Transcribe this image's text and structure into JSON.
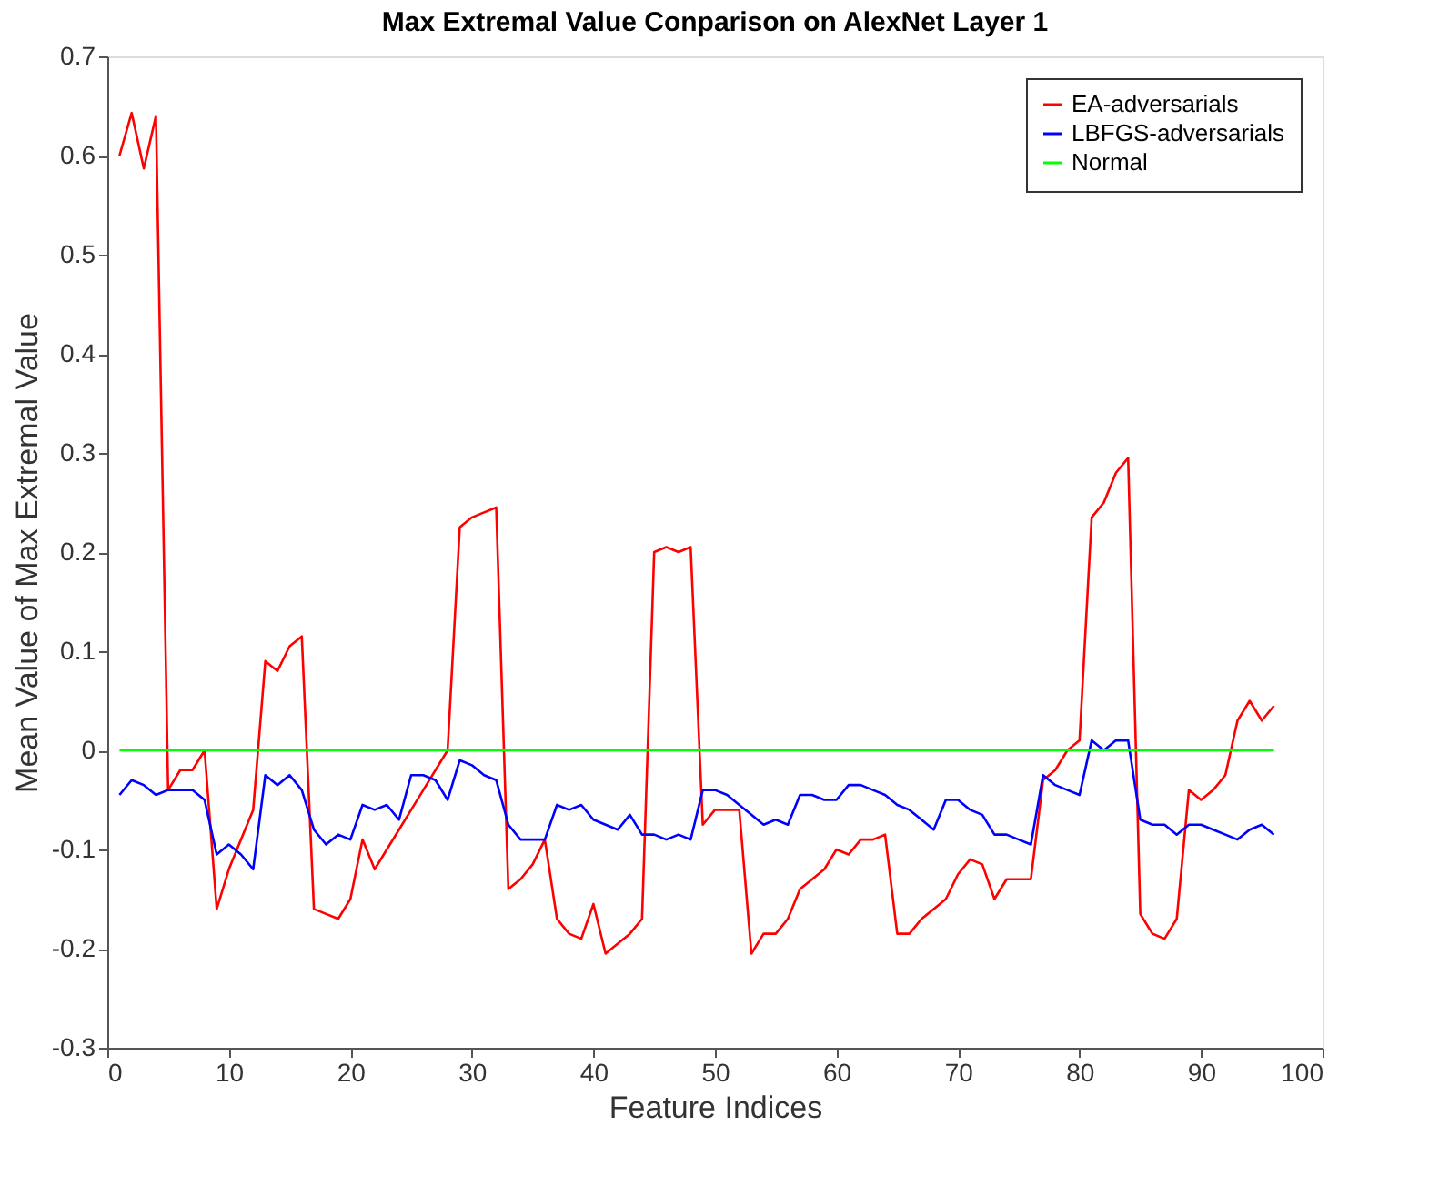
{
  "chart_data": {
    "type": "line",
    "title": "Max Extremal Value Conparison on AlexNet Layer 1",
    "xlabel": "Feature Indices",
    "ylabel": "Mean Value of Max Extremal Value",
    "x": [
      1,
      2,
      3,
      4,
      5,
      6,
      7,
      8,
      9,
      10,
      11,
      12,
      13,
      14,
      15,
      16,
      17,
      18,
      19,
      20,
      21,
      22,
      23,
      24,
      25,
      26,
      27,
      28,
      29,
      30,
      31,
      32,
      33,
      34,
      35,
      36,
      37,
      38,
      39,
      40,
      41,
      42,
      43,
      44,
      45,
      46,
      47,
      48,
      49,
      50,
      51,
      52,
      53,
      54,
      55,
      56,
      57,
      58,
      59,
      60,
      61,
      62,
      63,
      64,
      65,
      66,
      67,
      68,
      69,
      70,
      71,
      72,
      73,
      74,
      75,
      76,
      77,
      78,
      79,
      80,
      81,
      82,
      83,
      84,
      85,
      86,
      87,
      88,
      89,
      90,
      91,
      92,
      93,
      94,
      95,
      96
    ],
    "series": [
      {
        "name": "EA-adversarials",
        "color": "#ff0000",
        "values": [
          0.6,
          0.643,
          0.587,
          0.64,
          -0.04,
          -0.02,
          -0.02,
          0.0,
          -0.16,
          -0.12,
          -0.09,
          -0.06,
          0.09,
          0.08,
          0.105,
          0.115,
          -0.16,
          -0.165,
          -0.17,
          -0.15,
          -0.09,
          -0.12,
          -0.1,
          -0.08,
          -0.06,
          -0.04,
          -0.02,
          0.0,
          0.225,
          0.235,
          0.24,
          0.245,
          -0.14,
          -0.13,
          -0.115,
          -0.09,
          -0.17,
          -0.185,
          -0.19,
          -0.155,
          -0.205,
          -0.195,
          -0.185,
          -0.17,
          0.2,
          0.205,
          0.2,
          0.205,
          -0.075,
          -0.06,
          -0.06,
          -0.06,
          -0.205,
          -0.185,
          -0.185,
          -0.17,
          -0.14,
          -0.13,
          -0.12,
          -0.1,
          -0.105,
          -0.09,
          -0.09,
          -0.085,
          -0.185,
          -0.185,
          -0.17,
          -0.16,
          -0.15,
          -0.125,
          -0.11,
          -0.115,
          -0.15,
          -0.13,
          -0.13,
          -0.13,
          -0.03,
          -0.02,
          0.0,
          0.01,
          0.235,
          0.25,
          0.28,
          0.295,
          -0.165,
          -0.185,
          -0.19,
          -0.17,
          -0.04,
          -0.05,
          -0.04,
          -0.025,
          0.03,
          0.05,
          0.03,
          0.045
        ]
      },
      {
        "name": "LBFGS-adversarials",
        "color": "#0000ff",
        "values": [
          -0.045,
          -0.03,
          -0.035,
          -0.045,
          -0.04,
          -0.04,
          -0.04,
          -0.05,
          -0.105,
          -0.095,
          -0.105,
          -0.12,
          -0.025,
          -0.035,
          -0.025,
          -0.04,
          -0.08,
          -0.095,
          -0.085,
          -0.09,
          -0.055,
          -0.06,
          -0.055,
          -0.07,
          -0.025,
          -0.025,
          -0.03,
          -0.05,
          -0.01,
          -0.015,
          -0.025,
          -0.03,
          -0.075,
          -0.09,
          -0.09,
          -0.09,
          -0.055,
          -0.06,
          -0.055,
          -0.07,
          -0.075,
          -0.08,
          -0.065,
          -0.085,
          -0.085,
          -0.09,
          -0.085,
          -0.09,
          -0.04,
          -0.04,
          -0.045,
          -0.055,
          -0.065,
          -0.075,
          -0.07,
          -0.075,
          -0.045,
          -0.045,
          -0.05,
          -0.05,
          -0.035,
          -0.035,
          -0.04,
          -0.045,
          -0.055,
          -0.06,
          -0.07,
          -0.08,
          -0.05,
          -0.05,
          -0.06,
          -0.065,
          -0.085,
          -0.085,
          -0.09,
          -0.095,
          -0.025,
          -0.035,
          -0.04,
          -0.045,
          0.01,
          0.0,
          0.01,
          0.01,
          -0.07,
          -0.075,
          -0.075,
          -0.085,
          -0.075,
          -0.075,
          -0.08,
          -0.085,
          -0.09,
          -0.08,
          -0.075,
          -0.085
        ]
      },
      {
        "name": "Normal",
        "color": "#00ff00",
        "x": [
          1,
          96
        ],
        "values": [
          0,
          0
        ]
      }
    ],
    "xlim": [
      0,
      100
    ],
    "xticks": [
      0,
      10,
      20,
      30,
      40,
      50,
      60,
      70,
      80,
      90,
      100
    ],
    "ylim": [
      -0.3,
      0.7
    ],
    "yticks": [
      -0.3,
      -0.2,
      -0.1,
      0,
      0.1,
      0.2,
      0.3,
      0.4,
      0.5,
      0.6,
      0.7
    ],
    "grid": false,
    "legend": "top right",
    "line_style": "solid",
    "marker": "none"
  }
}
